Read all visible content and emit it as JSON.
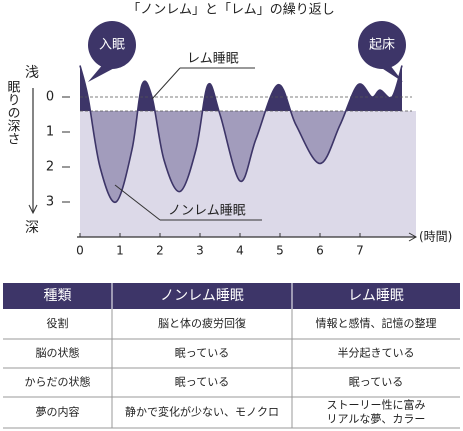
{
  "chart_data": {
    "type": "line",
    "title": "「ノンレム」と「レム」の繰り返し",
    "x": [
      0,
      0.2,
      0.5,
      0.9,
      1.3,
      1.55,
      1.8,
      2.1,
      2.5,
      2.9,
      3.2,
      3.5,
      4.0,
      4.4,
      4.95,
      5.4,
      6.0,
      6.5,
      6.95,
      7.3,
      7.5,
      7.8,
      8.05
    ],
    "values": [
      -0.9,
      0,
      2,
      3,
      1.5,
      -0.35,
      0,
      1.8,
      2.7,
      1.5,
      -0.35,
      0.5,
      2.4,
      1.2,
      -0.35,
      0.8,
      1.9,
      0.8,
      -0.35,
      0,
      -0.2,
      0,
      -0.9
    ],
    "xlim": [
      0,
      8.4
    ],
    "xticks": [
      0,
      1,
      2,
      3,
      4,
      5,
      6,
      7
    ],
    "x_label": "(時間)",
    "ylim": [
      -1,
      4
    ],
    "y_inverted": true,
    "yticks": [
      0,
      1,
      2,
      3
    ],
    "y_label": "眠りの深さ",
    "y_top_label": "浅",
    "y_bottom_label": "深",
    "reference_lines": [
      0,
      0.4
    ],
    "colors": {
      "deep": "#a29cbc",
      "rem": "#3d3568",
      "background": "#dcd9e8",
      "line": "#3d3568"
    },
    "annotations": {
      "rem": "レム睡眠",
      "nonrem": "ノンレム睡眠",
      "sleep_onset": "入眠",
      "wake_up": "起床"
    }
  },
  "table": {
    "header": [
      "種類",
      "ノンレム睡眠",
      "レム睡眠"
    ],
    "rows": [
      [
        "役割",
        "脳と体の疲労回復",
        "情報と感情、記憶の整理"
      ],
      [
        "脳の状態",
        "眠っている",
        "半分起きている"
      ],
      [
        "からだの状態",
        "眠っている",
        "眠っている"
      ],
      [
        "夢の内容",
        "静かで変化が少ない、モノクロ",
        [
          "ストーリー性に富み",
          "リアルな夢、カラー"
        ]
      ]
    ]
  }
}
